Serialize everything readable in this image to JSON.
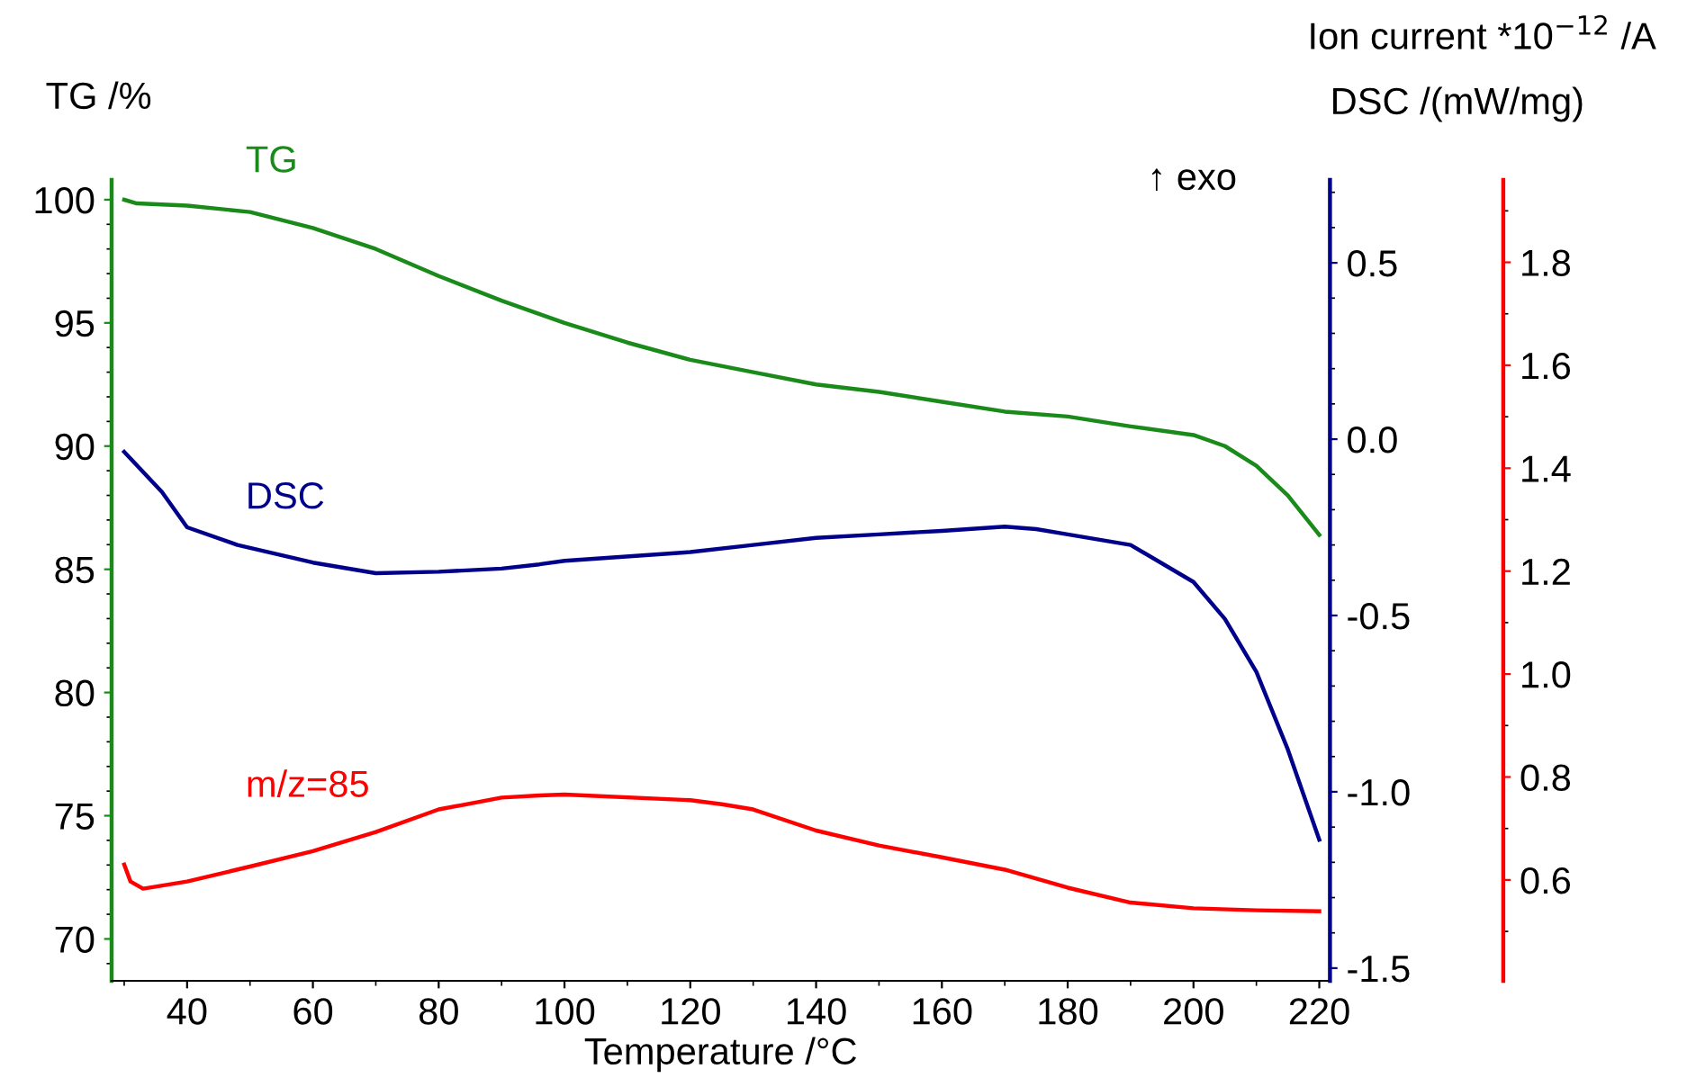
{
  "chart_data": {
    "type": "line",
    "xlabel": "Temperature /°C",
    "ylabel": "TG /%",
    "y2label": "DSC /(mW/mg)",
    "y3label": "Ion current *10$^{−12}$ /A",
    "annotations": [
      "↑ exo"
    ],
    "xlim": [
      28,
      221.7
    ],
    "xticks": [
      40,
      60,
      80,
      100,
      120,
      140,
      160,
      180,
      200,
      220
    ],
    "ylim": [
      68.3,
      100.8
    ],
    "yticks": [
      70,
      75,
      80,
      85,
      90,
      95,
      100
    ],
    "y2lim": [
      -1.536,
      0.735
    ],
    "y2ticks": [
      -1.5,
      {
        "value": -1,
        "label": "-1.0"
      },
      -0.5,
      {
        "value": 0,
        "label": "0.0"
      },
      0.5
    ],
    "y3lim": [
      0.404,
      1.96
    ],
    "y3ticks": [
      0.6,
      0.8,
      {
        "value": 1,
        "label": "1.0"
      },
      1.2,
      1.4,
      1.6,
      1.8
    ],
    "grid": false,
    "legend": false,
    "marker": "none",
    "line_style": "solid",
    "series": [
      {
        "name": "TG",
        "color": "#1a8a1a",
        "x": [
          30,
          32,
          40,
          50,
          60,
          70,
          80,
          90,
          100,
          110,
          120,
          130,
          140,
          150,
          160,
          170,
          180,
          190,
          200,
          205,
          210,
          215,
          220
        ],
        "values": [
          100.0,
          99.85,
          99.76,
          99.5,
          98.85,
          98.0,
          96.9,
          95.9,
          95.0,
          94.2,
          93.5,
          93.0,
          92.5,
          92.2,
          91.8,
          91.4,
          91.2,
          90.8,
          90.45,
          90.0,
          89.2,
          88.0,
          86.4
        ]
      },
      {
        "name": "DSC",
        "color": "#00008b",
        "axis": "y2",
        "x": [
          30,
          36,
          40,
          48,
          60,
          70,
          80,
          90,
          96,
          100,
          120,
          130,
          140,
          150,
          160,
          170,
          175,
          180,
          190,
          200,
          205,
          210,
          215,
          220
        ],
        "values": [
          -0.036,
          -0.15,
          -0.25,
          -0.3,
          -0.35,
          -0.38,
          -0.376,
          -0.367,
          -0.355,
          -0.345,
          -0.32,
          -0.3,
          -0.28,
          -0.27,
          -0.26,
          -0.248,
          -0.255,
          -0.27,
          -0.3,
          -0.405,
          -0.51,
          -0.66,
          -0.88,
          -1.136
        ]
      },
      {
        "name": "m/z=85",
        "color": "#ff0000",
        "axis": "y3",
        "x": [
          30,
          31,
          33,
          40,
          50,
          60,
          70,
          80,
          90,
          96,
          100,
          120,
          125,
          130,
          140,
          150,
          160,
          170,
          180,
          190,
          200,
          210,
          220
        ],
        "values": [
          0.63,
          0.597,
          0.583,
          0.597,
          0.626,
          0.656,
          0.693,
          0.737,
          0.76,
          0.764,
          0.766,
          0.755,
          0.747,
          0.737,
          0.696,
          0.667,
          0.644,
          0.62,
          0.585,
          0.556,
          0.545,
          0.541,
          0.539
        ]
      }
    ]
  }
}
